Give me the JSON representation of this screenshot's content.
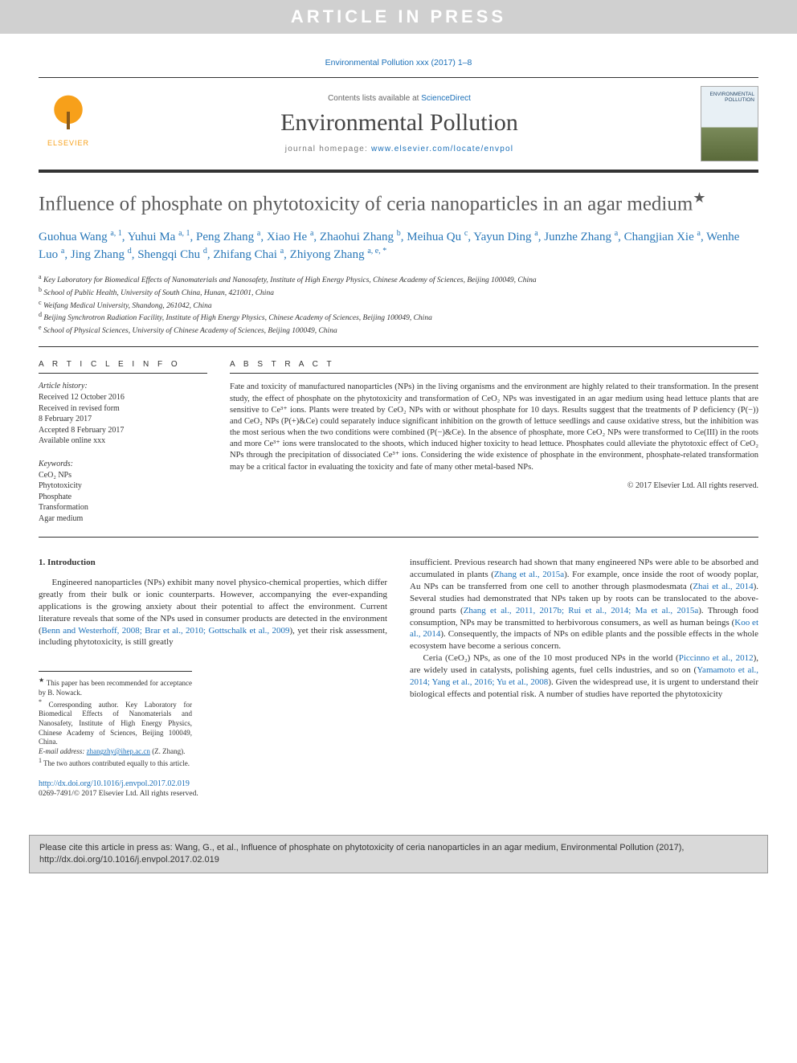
{
  "banner": {
    "text": "ARTICLE IN PRESS"
  },
  "journal_ref": "Environmental Pollution xxx (2017) 1–8",
  "header": {
    "contents_prefix": "Contents lists available at ",
    "contents_link": "ScienceDirect",
    "journal_name": "Environmental Pollution",
    "homepage_prefix": "journal homepage: ",
    "homepage_url": "www.elsevier.com/locate/envpol",
    "publisher": "ELSEVIER",
    "cover_label": "ENVIRONMENTAL POLLUTION"
  },
  "title": "Influence of phosphate on phytotoxicity of ceria nanoparticles in an agar medium",
  "title_star": "★",
  "authors_html": "Guohua Wang <sup>a, 1</sup>, Yuhui Ma <sup>a, 1</sup>, Peng Zhang <sup>a</sup>, Xiao He <sup>a</sup>, Zhaohui Zhang <sup>b</sup>, Meihua Qu <sup>c</sup>, Yayun Ding <sup>a</sup>, Junzhe Zhang <sup>a</sup>, Changjian Xie <sup>a</sup>, Wenhe Luo <sup>a</sup>, Jing Zhang <sup>d</sup>, Shengqi Chu <sup>d</sup>, Zhifang Chai <sup>a</sup>, Zhiyong Zhang <sup>a, e, *</sup>",
  "affiliations": [
    {
      "sup": "a",
      "text": "Key Laboratory for Biomedical Effects of Nanomaterials and Nanosafety, Institute of High Energy Physics, Chinese Academy of Sciences, Beijing 100049, China"
    },
    {
      "sup": "b",
      "text": "School of Public Health, University of South China, Hunan, 421001, China"
    },
    {
      "sup": "c",
      "text": "Weifang Medical University, Shandong, 261042, China"
    },
    {
      "sup": "d",
      "text": "Beijing Synchrotron Radiation Facility, Institute of High Energy Physics, Chinese Academy of Sciences, Beijing 100049, China"
    },
    {
      "sup": "e",
      "text": "School of Physical Sciences, University of Chinese Academy of Sciences, Beijing 100049, China"
    }
  ],
  "article_info": {
    "heading": "A R T I C L E   I N F O",
    "history_label": "Article history:",
    "history": [
      "Received 12 October 2016",
      "Received in revised form",
      "8 February 2017",
      "Accepted 8 February 2017",
      "Available online xxx"
    ],
    "keywords_label": "Keywords:",
    "keywords": [
      "CeO₂ NPs",
      "Phytotoxicity",
      "Phosphate",
      "Transformation",
      "Agar medium"
    ]
  },
  "abstract": {
    "heading": "A B S T R A C T",
    "text": "Fate and toxicity of manufactured nanoparticles (NPs) in the living organisms and the environment are highly related to their transformation. In the present study, the effect of phosphate on the phytotoxicity and transformation of CeO₂ NPs was investigated in an agar medium using head lettuce plants that are sensitive to Ce³⁺ ions. Plants were treated by CeO₂ NPs with or without phosphate for 10 days. Results suggest that the treatments of P deficiency (P(−)) and CeO₂ NPs (P(+)&Ce) could separately induce significant inhibition on the growth of lettuce seedlings and cause oxidative stress, but the inhibition was the most serious when the two conditions were combined (P(−)&Ce). In the absence of phosphate, more CeO₂ NPs were transformed to Ce(III) in the roots and more Ce³⁺ ions were translocated to the shoots, which induced higher toxicity to head lettuce. Phosphates could alleviate the phytotoxic effect of CeO₂ NPs through the precipitation of dissociated Ce³⁺ ions. Considering the wide existence of phosphate in the environment, phosphate-related transformation may be a critical factor in evaluating the toxicity and fate of many other metal-based NPs.",
    "copyright": "© 2017 Elsevier Ltd. All rights reserved."
  },
  "body": {
    "section_heading": "1. Introduction",
    "left_p1_a": "Engineered nanoparticles (NPs) exhibit many novel physico-chemical properties, which differ greatly from their bulk or ionic counterparts. However, accompanying the ever-expanding applications is the growing anxiety about their potential to affect the environment. Current literature reveals that some of the NPs used in consumer products are detected in the environment (",
    "left_ref1": "Benn and Westerhoff, 2008; Brar et al., 2010; Gottschalk et al., 2009",
    "left_p1_b": "), yet their risk assessment, including phytotoxicity, is still greatly",
    "right_p1_a": "insufficient. Previous research had shown that many engineered NPs were able to be absorbed and accumulated in plants (",
    "right_ref1": "Zhang et al., 2015a",
    "right_p1_b": "). For example, once inside the root of woody poplar, Au NPs can be transferred from one cell to another through plasmodesmata (",
    "right_ref2": "Zhai et al., 2014",
    "right_p1_c": "). Several studies had demonstrated that NPs taken up by roots can be translocated to the above-ground parts (",
    "right_ref3": "Zhang et al., 2011, 2017b; Rui et al., 2014; Ma et al., 2015a",
    "right_p1_d": "). Through food consumption, NPs may be transmitted to herbivorous consumers, as well as human beings (",
    "right_ref4": "Koo et al., 2014",
    "right_p1_e": "). Consequently, the impacts of NPs on edible plants and the possible effects in the whole ecosystem have become a serious concern.",
    "right_p2_a": "Ceria (CeO₂) NPs, as one of the 10 most produced NPs in the world (",
    "right_ref5": "Piccinno et al., 2012",
    "right_p2_b": "), are widely used in catalysts, polishing agents, fuel cells industries, and so on (",
    "right_ref6": "Yamamoto et al., 2014; Yang et al., 2016; Yu et al., 2008",
    "right_p2_c": "). Given the widespread use, it is urgent to understand their biological effects and potential risk. A number of studies have reported the phytotoxicity"
  },
  "footnotes": {
    "star": "This paper has been recommended for acceptance by B. Nowack.",
    "corr": "Corresponding author. Key Laboratory for Biomedical Effects of Nanomaterials and Nanosafety, Institute of High Energy Physics, Chinese Academy of Sciences, Beijing 100049, China.",
    "email_label": "E-mail address:",
    "email": "zhangzhy@ihep.ac.cn",
    "email_name": "(Z. Zhang).",
    "contrib": "The two authors contributed equally to this article."
  },
  "doi": {
    "url": "http://dx.doi.org/10.1016/j.envpol.2017.02.019",
    "issn": "0269-7491/© 2017 Elsevier Ltd. All rights reserved."
  },
  "cite_box": "Please cite this article in press as: Wang, G., et al., Influence of phosphate on phytotoxicity of ceria nanoparticles in an agar medium, Environmental Pollution (2017), http://dx.doi.org/10.1016/j.envpol.2017.02.019",
  "colors": {
    "banner_bg": "#d0d0d0",
    "banner_fg": "#ffffff",
    "link": "#1a6fb8",
    "author": "#2877b8",
    "elsevier_orange": "#f7a01a",
    "cite_bg": "#d9d9d9"
  }
}
